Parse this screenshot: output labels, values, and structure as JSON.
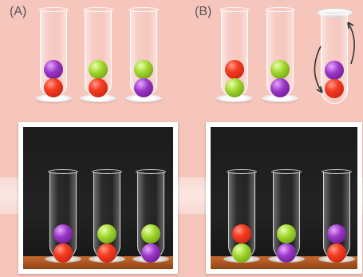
{
  "panel_a": {
    "label": "(A)"
  },
  "panel_b": {
    "label": "(B)"
  },
  "colors": {
    "red": "#f53c22",
    "green": "#9fd62c",
    "purple": "#9a36c6",
    "background": "#f6c6bd",
    "shelf": "#c86a2e"
  },
  "tubes_a": [
    {
      "top": "purple",
      "bottom": "red"
    },
    {
      "top": "green",
      "bottom": "red"
    },
    {
      "top": "green",
      "bottom": "purple"
    }
  ],
  "tubes_b": [
    {
      "top": "red",
      "bottom": "green"
    },
    {
      "top": "green",
      "bottom": "purple"
    },
    {
      "top": "purple",
      "bottom": "red",
      "inverted_with_cap": true
    }
  ],
  "photo_a": [
    {
      "top": "purple",
      "bottom": "red"
    },
    {
      "top": "green",
      "bottom": "red"
    },
    {
      "top": "green",
      "bottom": "purple"
    }
  ],
  "photo_b": [
    {
      "top": "red",
      "bottom": "green"
    },
    {
      "top": "green",
      "bottom": "purple"
    },
    {
      "top": "purple",
      "bottom": "red"
    }
  ],
  "icons": [
    "rotation-arrows-icon"
  ]
}
